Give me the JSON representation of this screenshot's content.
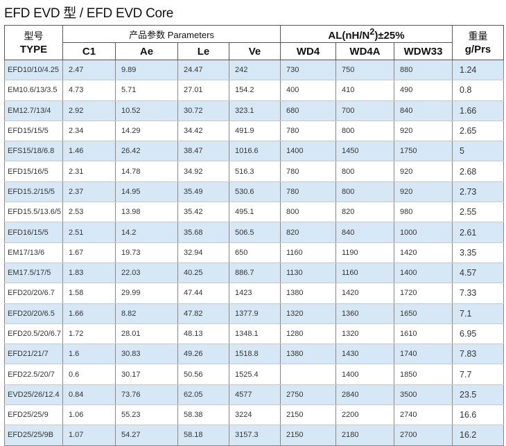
{
  "title": "EFD EVD 型  / EFD EVD Core",
  "header": {
    "type_cn": "型号",
    "type_en": "TYPE",
    "params_group": "产品参数  Parameters",
    "al_group_html": "AL(nH/N<sup>2</sup>)±25%",
    "weight_cn": "重量",
    "weight_en": "g/Prs",
    "cols": [
      "C1",
      "Ae",
      "Le",
      "Ve",
      "WD4",
      "WD4A",
      "WDW33"
    ]
  },
  "rows": [
    [
      "EFD10/10/4.25",
      "2.47",
      "9.89",
      "24.47",
      "242",
      "730",
      "750",
      "880",
      "1.24"
    ],
    [
      "EM10.6/13/3.5",
      "4.73",
      "5.71",
      "27.01",
      "154.2",
      "400",
      "410",
      "490",
      "0.8"
    ],
    [
      "EM12.7/13/4",
      "2.92",
      "10.52",
      "30.72",
      "323.1",
      "680",
      "700",
      "840",
      "1.66"
    ],
    [
      "EFD15/15/5",
      "2.34",
      "14.29",
      "34.42",
      "491.9",
      "780",
      "800",
      "920",
      "2.65"
    ],
    [
      "EFS15/18/6.8",
      "1.46",
      "26.42",
      "38.47",
      "1016.6",
      "1400",
      "1450",
      "1750",
      "5"
    ],
    [
      "EFD15/16/5",
      "2.31",
      "14.78",
      "34.92",
      "516.3",
      "780",
      "800",
      "920",
      "2.68"
    ],
    [
      "EFD15.2/15/5",
      "2.37",
      "14.95",
      "35.49",
      "530.6",
      "780",
      "800",
      "920",
      "2.73"
    ],
    [
      "EFD15.5/13.6/5",
      "2.53",
      "13.98",
      "35.42",
      "495.1",
      "800",
      "820",
      "980",
      "2.55"
    ],
    [
      "EFD16/15/5",
      "2.51",
      "14.2",
      "35.68",
      "506.5",
      "820",
      "840",
      "1000",
      "2.61"
    ],
    [
      "EM17/13/6",
      "1.67",
      "19.73",
      "32.94",
      "650",
      "1160",
      "1190",
      "1420",
      "3.35"
    ],
    [
      "EM17.5/17/5",
      "1.83",
      "22.03",
      "40.25",
      "886.7",
      "1130",
      "1160",
      "1400",
      "4.57"
    ],
    [
      "EFD20/20/6.7",
      "1.58",
      "29.99",
      "47.44",
      "1423",
      "1380",
      "1420",
      "1720",
      "7.33"
    ],
    [
      "EFD20/20/6.5",
      "1.66",
      "8.82",
      "47.82",
      "1377.9",
      "1320",
      "1360",
      "1650",
      "7.1"
    ],
    [
      "EFD20.5/20/6.7",
      "1.72",
      "28.01",
      "48.13",
      "1348.1",
      "1280",
      "1320",
      "1610",
      "6.95"
    ],
    [
      "EFD21/21/7",
      "1.6",
      "30.83",
      "49.26",
      "1518.8",
      "1380",
      "1430",
      "1740",
      "7.83"
    ],
    [
      "EFD22.5/20/7",
      "0.6",
      "30.17",
      "50.56",
      "1525.4",
      "",
      "1400",
      "1850",
      "7.7"
    ],
    [
      "EVD25/26/12.4",
      "0.84",
      "73.76",
      "62.05",
      "4577",
      "2750",
      "2840",
      "3500",
      "23.5"
    ],
    [
      "EFD25/25/9",
      "1.06",
      "55.23",
      "58.38",
      "3224",
      "2150",
      "2200",
      "2740",
      "16.6"
    ],
    [
      "EFD25/25/9B",
      "1.07",
      "54.27",
      "58.18",
      "3157.3",
      "2150",
      "2180",
      "2700",
      "16.2"
    ]
  ]
}
